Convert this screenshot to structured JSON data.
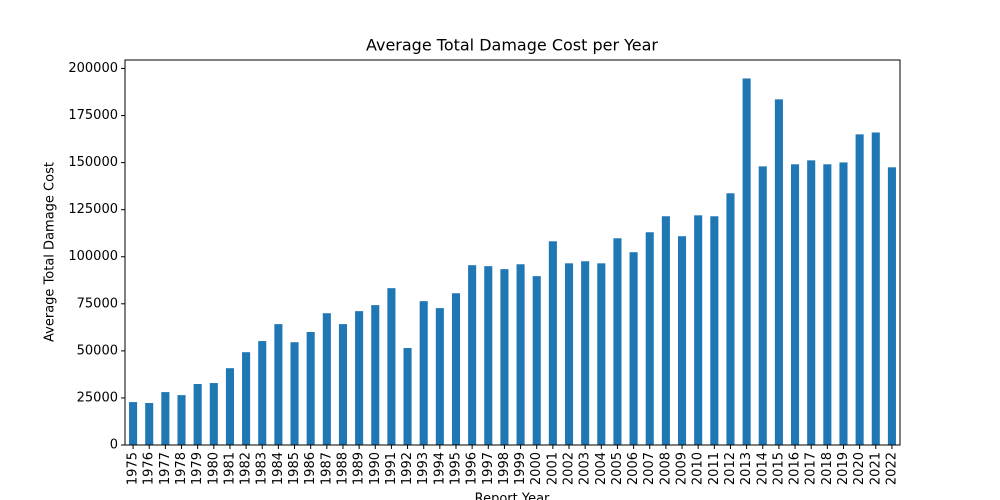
{
  "chart_data": {
    "type": "bar",
    "title": "Average Total Damage Cost per Year",
    "x_label": "Report Year",
    "y_label": "Average Total Damage Cost",
    "categories": [
      "1975",
      "1976",
      "1977",
      "1978",
      "1979",
      "1980",
      "1981",
      "1982",
      "1983",
      "1984",
      "1985",
      "1986",
      "1987",
      "1988",
      "1989",
      "1990",
      "1991",
      "1992",
      "1993",
      "1994",
      "1995",
      "1996",
      "1997",
      "1998",
      "1999",
      "2000",
      "2001",
      "2002",
      "2003",
      "2004",
      "2005",
      "2006",
      "2007",
      "2008",
      "2009",
      "2010",
      "2011",
      "2012",
      "2013",
      "2014",
      "2015",
      "2016",
      "2017",
      "2018",
      "2019",
      "2020",
      "2021",
      "2022"
    ],
    "values": [
      22800,
      22300,
      28100,
      26500,
      32400,
      32900,
      40800,
      49300,
      55200,
      64200,
      54600,
      60000,
      70000,
      64200,
      71100,
      74300,
      83300,
      51500,
      76400,
      72700,
      80600,
      95500,
      95000,
      93400,
      96000,
      89700,
      108200,
      96500,
      97600,
      96500,
      109800,
      102400,
      113000,
      121500,
      110900,
      122000,
      121500,
      133700,
      194700,
      148000,
      183600,
      149100,
      151200,
      149100,
      150100,
      165000,
      166000,
      147500
    ],
    "color": "#1f77b4",
    "ylim": [
      0,
      204500
    ],
    "yticks": [
      0,
      25000,
      50000,
      75000,
      100000,
      125000,
      150000,
      175000,
      200000
    ]
  }
}
